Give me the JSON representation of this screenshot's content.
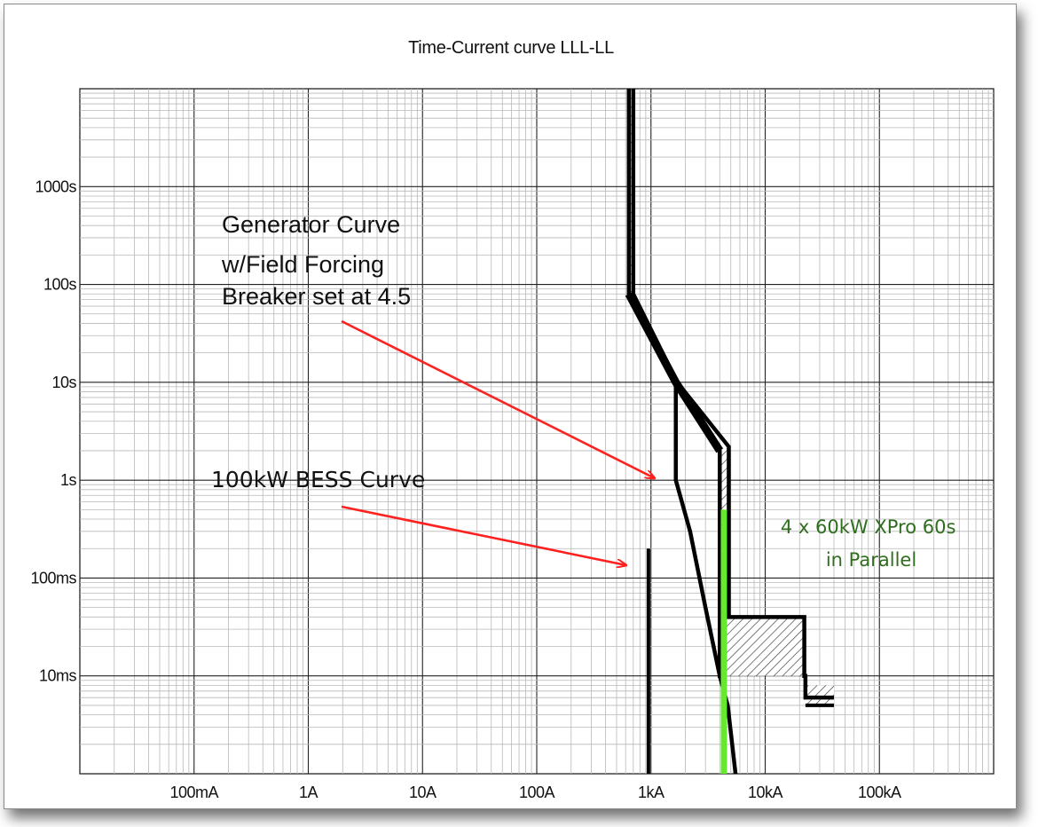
{
  "chart_data": {
    "type": "line",
    "title": "Time-Current curve LLL-LL",
    "x_scale": "log",
    "y_scale": "log",
    "xlim": [
      0.01,
      1000000
    ],
    "ylim": [
      0.001,
      10000
    ],
    "grid": true,
    "x_tick_labels": [
      "100mA",
      "1A",
      "10A",
      "100A",
      "1kA",
      "10kA",
      "100kA"
    ],
    "x_tick_values": [
      0.1,
      1,
      10,
      100,
      1000,
      10000,
      100000
    ],
    "y_tick_labels": [
      "10ms",
      "100ms",
      "1s",
      "10s",
      "100s",
      "1000s"
    ],
    "y_tick_values": [
      0.01,
      0.1,
      1,
      10,
      100,
      1000
    ],
    "colors": {
      "curve": "#000000",
      "grid_major": "#222222",
      "grid_minor": "#b8b8b8",
      "arrow": "#ff2020",
      "xpro": "#66e82f",
      "xpro_label": "#2f6e1e"
    },
    "series": [
      {
        "name": "",
        "description_label_index": 0,
        "points": [
          [
            640,
            10000
          ],
          [
            640,
            80
          ],
          [
            1650,
            10
          ],
          [
            4000,
            2
          ],
          [
            4000,
            0.01
          ],
          [
            4350,
            0.01
          ],
          [
            4350,
            0.04
          ],
          [
            22000,
            0.04
          ],
          [
            22000,
            0.01
          ],
          [
            22500,
            0.01
          ],
          [
            22500,
            0.006
          ],
          [
            40000,
            0.006
          ]
        ]
      },
      {
        "name": "",
        "points": [
          [
            700,
            10000
          ],
          [
            700,
            80
          ],
          [
            1700,
            10
          ],
          [
            4800,
            2.2
          ],
          [
            4800,
            0.04
          ]
        ]
      },
      {
        "name": "",
        "points": [
          [
            1650,
            10
          ],
          [
            1650,
            1
          ],
          [
            2200,
            0.3
          ],
          [
            3000,
            0.05
          ],
          [
            4000,
            0.01
          ],
          [
            4700,
            0.005
          ],
          [
            5500,
            0.001
          ]
        ]
      },
      {
        "name": "",
        "points": [
          [
            950,
            0.2
          ],
          [
            950,
            0.001
          ]
        ]
      },
      {
        "name": "",
        "points": [
          [
            4350,
            0.5
          ],
          [
            4350,
            0.001
          ]
        ]
      }
    ],
    "annotations": [
      {
        "lines": [
          "Generator Curve",
          "w/Field Forcing",
          "Breaker set at 4.5"
        ]
      },
      {
        "lines": [
          "100kW BESS Curve"
        ]
      },
      {
        "lines": [
          "4 x 60kW XPro 60s",
          "in Parallel"
        ]
      }
    ]
  }
}
